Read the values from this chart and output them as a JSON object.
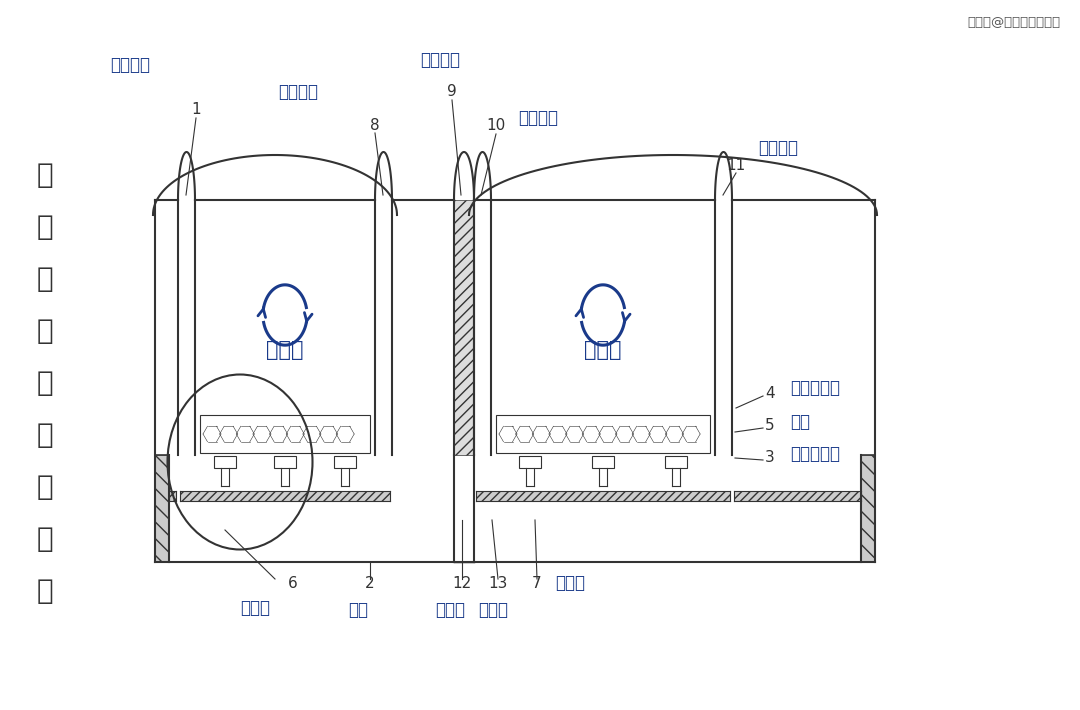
{
  "bg_color": "#ffffff",
  "line_color": "#333333",
  "blue_color": "#1a3a8a",
  "gray_color": "#888888",
  "title_chars": [
    "四",
    "玻",
    "两",
    "腔",
    "窗",
    "组",
    "构",
    "部",
    "件"
  ],
  "heat_label": "热传导",
  "watermark": "搜狐号@搜狐焦点池州站",
  "labels": {
    "1": "第一玻璃",
    "2": "窗框",
    "3": "橡胶减震垫",
    "4": "橡胶密封条",
    "5": "卡块",
    "6": "暖边条",
    "7": "定位块",
    "8": "第二玻璃",
    "9": "夹角膜层",
    "10": "第三玻璃",
    "11": "第四玻璃",
    "12": "分子塞",
    "13": "限位块"
  }
}
